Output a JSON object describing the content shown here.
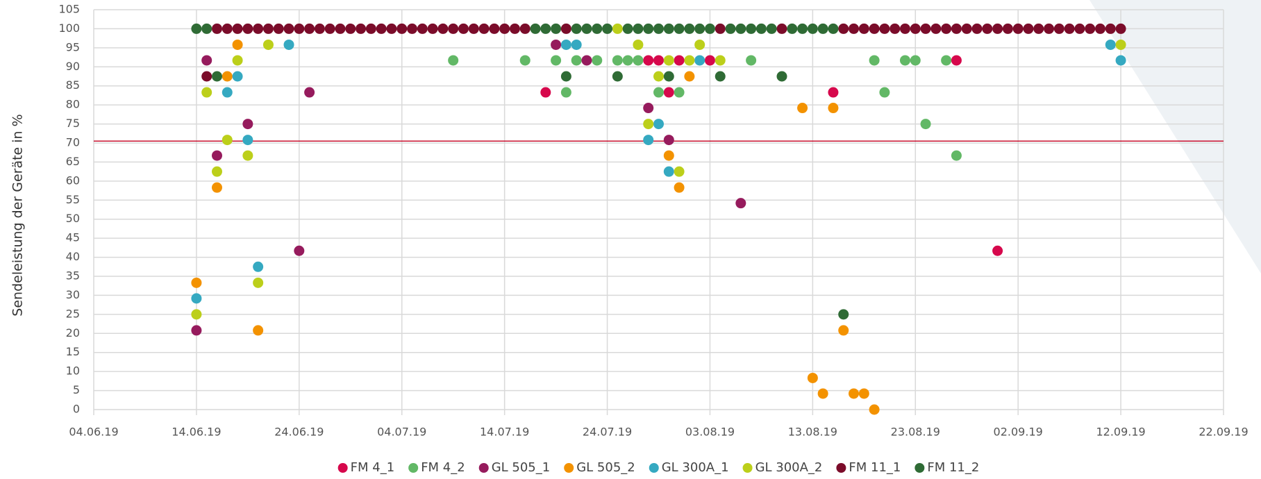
{
  "chart_data": {
    "type": "scatter",
    "y_label": "Sendeleistung der Geräte in %",
    "xlim": [
      "04.06.19",
      "22.09.19"
    ],
    "xticks": [
      "04.06.19",
      "14.06.19",
      "24.06.19",
      "04.07.19",
      "14.07.19",
      "24.07.19",
      "03.08.19",
      "13.08.19",
      "23.08.19",
      "02.09.19",
      "12.09.19",
      "22.09.19"
    ],
    "ylim": [
      0,
      105
    ],
    "yticks": [
      0,
      5,
      10,
      15,
      20,
      25,
      30,
      35,
      40,
      45,
      50,
      55,
      60,
      65,
      70,
      75,
      80,
      85,
      90,
      95,
      100,
      105
    ],
    "grid": true,
    "legend": "bottom",
    "reference_line": {
      "value": 70.5,
      "color": "#c8102e"
    },
    "series": [
      {
        "name": "FM 4_1",
        "color": "#d6084c",
        "x": [
          "18.07.19",
          "28.07.19",
          "29.07.19",
          "30.07.19",
          "31.07.19",
          "03.08.19",
          "15.08.19",
          "27.08.19",
          "31.08.19"
        ],
        "values": [
          83.3,
          91.7,
          91.7,
          83.3,
          91.7,
          91.7,
          83.3,
          91.7,
          41.7
        ]
      },
      {
        "name": "FM 4_2",
        "color": "#62b866",
        "x": [
          "09.07.19",
          "16.07.19",
          "19.07.19",
          "20.07.19",
          "21.07.19",
          "23.07.19",
          "25.07.19",
          "26.07.19",
          "27.07.19",
          "29.07.19",
          "31.07.19",
          "07.08.19",
          "19.08.19",
          "20.08.19",
          "22.08.19",
          "23.08.19",
          "24.08.19",
          "26.08.19",
          "27.08.19"
        ],
        "values": [
          91.7,
          91.7,
          91.7,
          83.3,
          91.7,
          91.7,
          91.7,
          91.7,
          91.7,
          83.3,
          83.3,
          91.7,
          91.7,
          83.3,
          91.7,
          91.7,
          75,
          91.7,
          66.7
        ]
      },
      {
        "name": "GL 505_1",
        "color": "#961b5d",
        "x": [
          "14.06.19",
          "15.06.19",
          "16.06.19",
          "19.06.19",
          "24.06.19",
          "25.06.19",
          "19.07.19",
          "22.07.19",
          "28.07.19",
          "30.07.19",
          "06.08.19"
        ],
        "values": [
          20.8,
          91.7,
          66.7,
          75,
          41.7,
          83.3,
          95.8,
          91.7,
          79.2,
          70.8,
          54.2
        ]
      },
      {
        "name": "GL 505_2",
        "color": "#f39200",
        "x": [
          "14.06.19",
          "16.06.19",
          "17.06.19",
          "18.06.19",
          "20.06.19",
          "30.07.19",
          "31.07.19",
          "01.08.19",
          "12.08.19",
          "13.08.19",
          "14.08.19",
          "15.08.19",
          "16.08.19",
          "17.08.19",
          "18.08.19",
          "19.08.19"
        ],
        "values": [
          33.3,
          58.3,
          87.5,
          95.8,
          20.8,
          66.7,
          58.3,
          87.5,
          79.2,
          8.3,
          4.2,
          79.2,
          20.8,
          4.2,
          4.2,
          0
        ]
      },
      {
        "name": "GL 300A_1",
        "color": "#35a9c1",
        "x": [
          "14.06.19",
          "17.06.19",
          "18.06.19",
          "19.06.19",
          "20.06.19",
          "23.06.19",
          "20.07.19",
          "21.07.19",
          "28.07.19",
          "29.07.19",
          "30.07.19",
          "02.08.19",
          "11.09.19",
          "12.09.19"
        ],
        "values": [
          29.2,
          83.3,
          87.5,
          70.8,
          37.5,
          95.8,
          95.8,
          95.8,
          70.8,
          75,
          62.5,
          91.7,
          95.8,
          91.7
        ]
      },
      {
        "name": "GL 300A_2",
        "color": "#bccf1a",
        "x": [
          "14.06.19",
          "15.06.19",
          "16.06.19",
          "17.06.19",
          "18.06.19",
          "19.06.19",
          "20.06.19",
          "21.06.19",
          "25.07.19",
          "27.07.19",
          "28.07.19",
          "29.07.19",
          "30.07.19",
          "31.07.19",
          "01.08.19",
          "02.08.19",
          "04.08.19",
          "12.09.19"
        ],
        "values": [
          25,
          83.3,
          62.5,
          70.8,
          91.7,
          66.7,
          33.3,
          95.8,
          100,
          95.8,
          75,
          87.5,
          91.7,
          62.5,
          91.7,
          95.8,
          91.7,
          95.8
        ]
      },
      {
        "name": "FM 11_1",
        "color": "#7b0c2a",
        "x": [
          "15.06.19",
          "16.06.19",
          "17.06.19",
          "18.06.19",
          "19.06.19",
          "20.06.19",
          "21.06.19",
          "22.06.19",
          "23.06.19",
          "24.06.19",
          "25.06.19",
          "26.06.19",
          "27.06.19",
          "28.06.19",
          "29.06.19",
          "30.06.19",
          "01.07.19",
          "02.07.19",
          "03.07.19",
          "04.07.19",
          "05.07.19",
          "06.07.19",
          "07.07.19",
          "08.07.19",
          "09.07.19",
          "10.07.19",
          "11.07.19",
          "12.07.19",
          "13.07.19",
          "14.07.19",
          "15.07.19",
          "16.07.19",
          "20.07.19",
          "04.08.19",
          "10.08.19",
          "16.08.19",
          "17.08.19",
          "18.08.19",
          "19.08.19",
          "20.08.19",
          "21.08.19",
          "22.08.19",
          "23.08.19",
          "24.08.19",
          "25.08.19",
          "26.08.19",
          "27.08.19",
          "28.08.19",
          "29.08.19",
          "30.08.19",
          "31.08.19",
          "01.09.19",
          "02.09.19",
          "03.09.19",
          "04.09.19",
          "05.09.19",
          "06.09.19",
          "07.09.19",
          "08.09.19",
          "09.09.19",
          "10.09.19",
          "11.09.19",
          "12.09.19"
        ],
        "values": [
          87.5,
          100,
          100,
          100,
          100,
          100,
          100,
          100,
          100,
          100,
          100,
          100,
          100,
          100,
          100,
          100,
          100,
          100,
          100,
          100,
          100,
          100,
          100,
          100,
          100,
          100,
          100,
          100,
          100,
          100,
          100,
          100,
          100,
          100,
          100,
          100,
          100,
          100,
          100,
          100,
          100,
          100,
          100,
          100,
          100,
          100,
          100,
          100,
          100,
          100,
          100,
          100,
          100,
          100,
          100,
          100,
          100,
          100,
          100,
          100,
          100,
          100,
          100
        ]
      },
      {
        "name": "FM 11_2",
        "color": "#2f6b35",
        "x": [
          "14.06.19",
          "15.06.19",
          "16.06.19",
          "17.07.19",
          "18.07.19",
          "19.07.19",
          "20.07.19",
          "21.07.19",
          "22.07.19",
          "23.07.19",
          "24.07.19",
          "25.07.19",
          "26.07.19",
          "27.07.19",
          "28.07.19",
          "29.07.19",
          "30.07.19",
          "30.07.19",
          "31.07.19",
          "01.08.19",
          "02.08.19",
          "03.08.19",
          "04.08.19",
          "05.08.19",
          "06.08.19",
          "07.08.19",
          "08.08.19",
          "09.08.19",
          "10.08.19",
          "11.08.19",
          "12.08.19",
          "13.08.19",
          "14.08.19",
          "15.08.19",
          "16.08.19"
        ],
        "values": [
          100,
          100,
          87.5,
          100,
          100,
          100,
          87.5,
          100,
          100,
          100,
          100,
          87.5,
          100,
          100,
          100,
          100,
          100,
          87.5,
          100,
          100,
          100,
          100,
          87.5,
          100,
          100,
          100,
          100,
          100,
          87.5,
          100,
          100,
          100,
          100,
          100,
          25
        ]
      }
    ]
  }
}
